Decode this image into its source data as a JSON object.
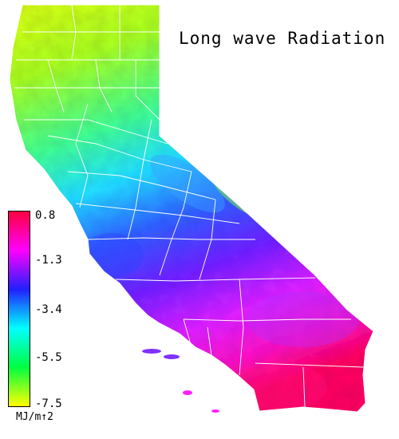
{
  "map": {
    "title": "Long wave Radiation",
    "region": "California",
    "variable": "long wave radiation"
  },
  "legend": {
    "ticks": [
      "0.8",
      "-1.3",
      "-3.4",
      "-5.5",
      "-7.5"
    ],
    "unit": "MJ/m↑2",
    "colors": [
      "#ff0040",
      "#ff00ff",
      "#2020ff",
      "#00ffff",
      "#00ff40",
      "#ffff00"
    ]
  }
}
